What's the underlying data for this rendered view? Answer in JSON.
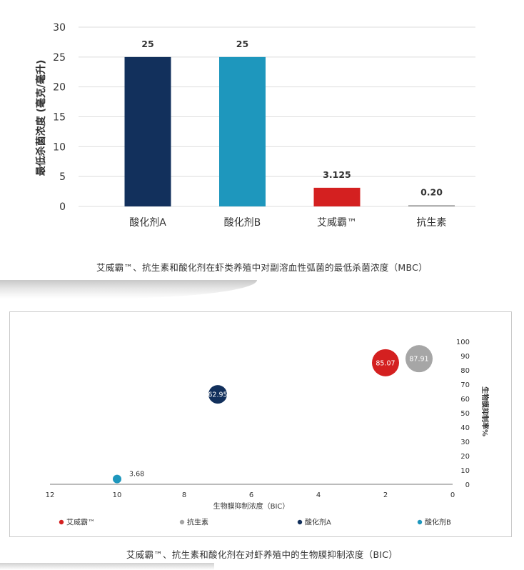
{
  "captions": {
    "mbc": "艾威霸™、抗生素和酸化剂在虾类养殖中对副溶血性弧菌的最低杀菌浓度（MBC）",
    "bic": "艾威霸™、抗生素和酸化剂在对虾养殖中的生物膜抑制浓度（BIC）"
  },
  "chart_data": [
    {
      "type": "bar",
      "ylabel": "最低杀菌浓度 (毫克/毫升)",
      "ylim": [
        0,
        30
      ],
      "yticks": [
        0,
        5,
        10,
        15,
        20,
        25,
        30
      ],
      "grid": true,
      "categories": [
        "酸化剂A",
        "酸化剂B",
        "艾威霸™",
        "抗生素"
      ],
      "values": [
        25,
        25,
        3.125,
        0.2
      ],
      "value_labels": [
        "25",
        "25",
        "3.125",
        "0.20"
      ],
      "colors": [
        "#12305c",
        "#1e97bd",
        "#d42020",
        "#999999"
      ]
    },
    {
      "type": "scatter",
      "xlabel": "生物膜抑制浓度（BIC）",
      "ylabel": "生物膜抑制率%",
      "xlim": [
        12,
        0
      ],
      "xticks": [
        12,
        10,
        8,
        6,
        4,
        2,
        0
      ],
      "ylim": [
        0,
        100
      ],
      "yticks": [
        0,
        10,
        20,
        30,
        40,
        50,
        60,
        70,
        80,
        90,
        100
      ],
      "legend_position": "bottom",
      "series": [
        {
          "name": "艾威霸™",
          "x": 2,
          "y": 85.07,
          "label": "85.07",
          "color": "#d42020"
        },
        {
          "name": "抗生素",
          "x": 1,
          "y": 87.91,
          "label": "87.91",
          "color": "#a6a6a6"
        },
        {
          "name": "酸化剂A",
          "x": 7,
          "y": 62.95,
          "label": "62.95",
          "color": "#12305c"
        },
        {
          "name": "酸化剂B",
          "x": 10,
          "y": 3.68,
          "label": "3.68",
          "color": "#1e97bd"
        }
      ]
    }
  ]
}
